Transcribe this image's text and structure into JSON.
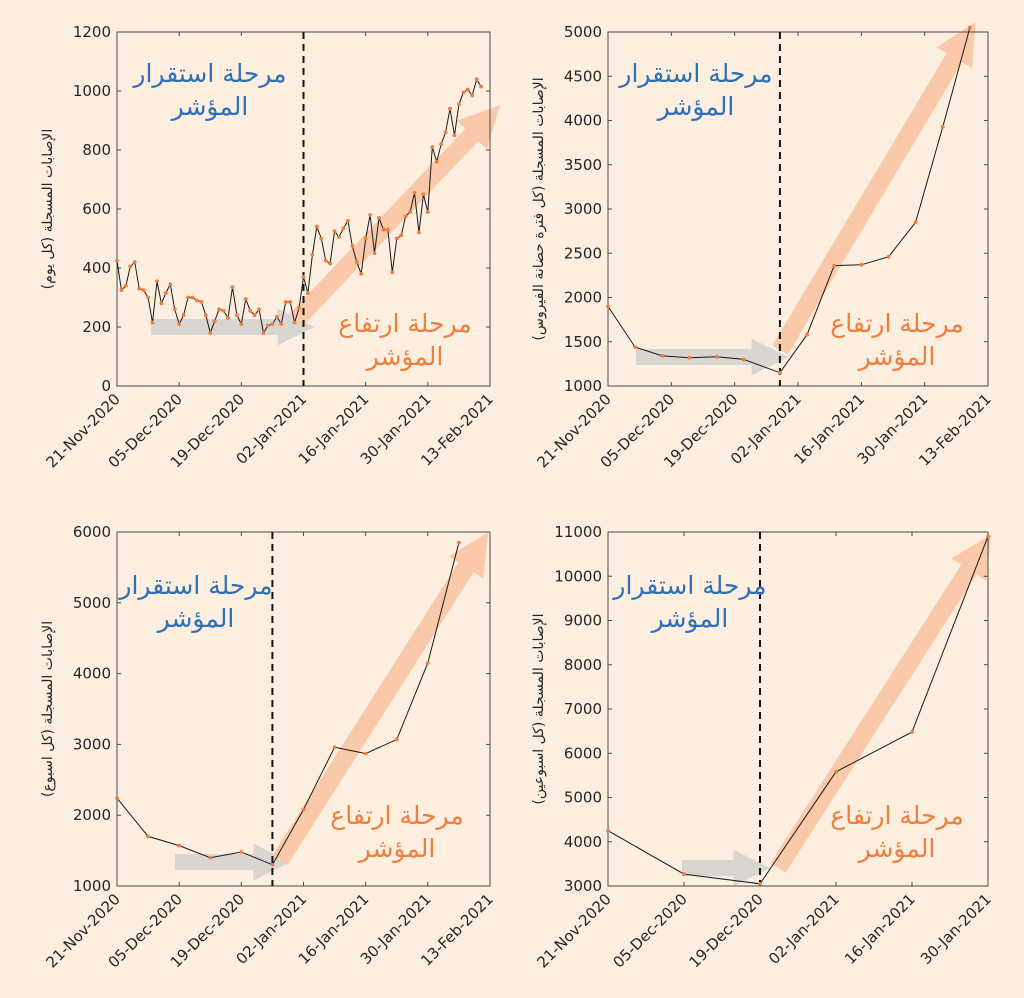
{
  "colors": {
    "background": "#fdefe0",
    "line": "#1a1a1a",
    "marker": "#f07d3c",
    "stable_text": "#2f6fb7",
    "rise_text": "#f07d3c",
    "rise_arrow": "#f9c9a9",
    "stable_arrow": "#d9d6d2"
  },
  "labels": {
    "stable_line1": "مرحلة استقرار",
    "stable_line2": "المؤشر",
    "rise_line1": "مرحلة ارتفاع",
    "rise_line2": "المؤشر"
  },
  "chart_data": [
    {
      "type": "line",
      "ylabel": "الإصابات المسجلة (كل يوم)",
      "xlim": [
        "21-Nov-2020",
        "13-Feb-2021"
      ],
      "ylim": [
        0,
        1200
      ],
      "yticks": [
        0,
        200,
        400,
        600,
        800,
        1000,
        1200
      ],
      "xticks": [
        "21-Nov-2020",
        "05-Dec-2020",
        "19-Dec-2020",
        "02-Jan-2021",
        "16-Jan-2021",
        "30-Jan-2021",
        "13-Feb-2021"
      ],
      "divider": "02-Jan-2021",
      "start": "21-Nov-2020",
      "values": [
        425,
        325,
        340,
        405,
        420,
        330,
        325,
        300,
        215,
        355,
        280,
        315,
        345,
        260,
        210,
        240,
        300,
        300,
        290,
        285,
        240,
        180,
        220,
        260,
        255,
        230,
        335,
        240,
        210,
        295,
        255,
        240,
        260,
        180,
        205,
        210,
        235,
        210,
        285,
        285,
        215,
        265,
        370,
        315,
        445,
        540,
        500,
        425,
        415,
        525,
        505,
        535,
        560,
        475,
        420,
        380,
        500,
        580,
        450,
        570,
        530,
        530,
        385,
        500,
        510,
        575,
        590,
        655,
        520,
        650,
        590,
        810,
        760,
        820,
        860,
        940,
        850,
        955,
        995,
        1005,
        985,
        1040,
        1015
      ]
    },
    {
      "type": "line",
      "ylabel": "الإصابات المسجلة (كل فترة حضانة الفيروس)",
      "xlim": [
        "21-Nov-2020",
        "13-Feb-2021"
      ],
      "ylim": [
        1000,
        5000
      ],
      "yticks": [
        1000,
        1500,
        2000,
        2500,
        3000,
        3500,
        4000,
        4500,
        5000
      ],
      "xticks": [
        "21-Nov-2020",
        "05-Dec-2020",
        "19-Dec-2020",
        "02-Jan-2021",
        "16-Jan-2021",
        "30-Jan-2021",
        "13-Feb-2021"
      ],
      "divider": "29-Dec-2020",
      "points": [
        [
          "21-Nov-2020",
          1900
        ],
        [
          "27-Nov-2020",
          1440
        ],
        [
          "03-Dec-2020",
          1340
        ],
        [
          "09-Dec-2020",
          1320
        ],
        [
          "15-Dec-2020",
          1330
        ],
        [
          "21-Dec-2020",
          1300
        ],
        [
          "29-Dec-2020",
          1150
        ],
        [
          "04-Jan-2021",
          1580
        ],
        [
          "10-Jan-2021",
          2360
        ],
        [
          "16-Jan-2021",
          2370
        ],
        [
          "22-Jan-2021",
          2460
        ],
        [
          "28-Jan-2021",
          2850
        ],
        [
          "03-Feb-2021",
          3930
        ],
        [
          "09-Feb-2021",
          5050
        ]
      ]
    },
    {
      "type": "line",
      "ylabel": "الإصابات المسجلة (كل اسبوع)",
      "xlim": [
        "21-Nov-2020",
        "13-Feb-2021"
      ],
      "ylim": [
        1000,
        6000
      ],
      "yticks": [
        1000,
        2000,
        3000,
        4000,
        5000,
        6000
      ],
      "xticks": [
        "21-Nov-2020",
        "05-Dec-2020",
        "19-Dec-2020",
        "02-Jan-2021",
        "16-Jan-2021",
        "30-Jan-2021",
        "13-Feb-2021"
      ],
      "divider": "26-Dec-2020",
      "points": [
        [
          "21-Nov-2020",
          2240
        ],
        [
          "28-Nov-2020",
          1700
        ],
        [
          "05-Dec-2020",
          1570
        ],
        [
          "12-Dec-2020",
          1400
        ],
        [
          "19-Dec-2020",
          1480
        ],
        [
          "26-Dec-2020",
          1300
        ],
        [
          "02-Jan-2021",
          2080
        ],
        [
          "09-Jan-2021",
          2960
        ],
        [
          "16-Jan-2021",
          2870
        ],
        [
          "23-Jan-2021",
          3070
        ],
        [
          "30-Jan-2021",
          4150
        ],
        [
          "06-Feb-2021",
          5850
        ]
      ]
    },
    {
      "type": "line",
      "ylabel": "الإصابات المسجلة (كل اسبوعين)",
      "xlim": [
        "21-Nov-2020",
        "30-Jan-2021"
      ],
      "ylim": [
        3000,
        11000
      ],
      "yticks": [
        3000,
        4000,
        5000,
        6000,
        7000,
        8000,
        9000,
        10000,
        11000
      ],
      "xticks": [
        "21-Nov-2020",
        "05-Dec-2020",
        "19-Dec-2020",
        "02-Jan-2021",
        "16-Jan-2021",
        "30-Jan-2021"
      ],
      "divider": "19-Dec-2020",
      "points": [
        [
          "21-Nov-2020",
          4250
        ],
        [
          "05-Dec-2020",
          3270
        ],
        [
          "19-Dec-2020",
          3050
        ],
        [
          "02-Jan-2021",
          5580
        ],
        [
          "16-Jan-2021",
          6480
        ],
        [
          "30-Jan-2021",
          10900
        ]
      ]
    }
  ]
}
